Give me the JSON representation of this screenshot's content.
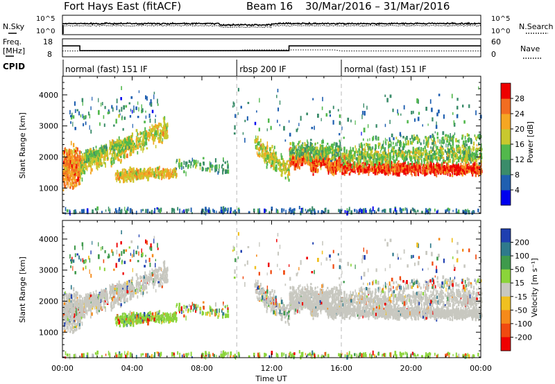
{
  "chart_data": {
    "type": "heatmap",
    "station": "Fort Hays East (fitACF)",
    "beam": "Beam 16",
    "date_range": "30/Mar/2016 – 31/Mar/2016",
    "xlabel": "Time UT",
    "x_ticks": [
      "00:00",
      "04:00",
      "08:00",
      "12:00",
      "16:00",
      "20:00",
      "00:00"
    ],
    "xlim_hours": [
      0,
      24
    ],
    "noise_panel": {
      "left_label": "N.Sky",
      "right_label": "N.Search",
      "left_ticks": [
        "10^5",
        "10^0"
      ],
      "right_ticks": [
        "10^5",
        "10^0"
      ]
    },
    "freq_panel": {
      "left_label_line1": "Freq.",
      "left_label_line2": "[MHz]",
      "right_label": "Nave",
      "left_ticks": [
        "18",
        "8"
      ],
      "right_ticks": [
        "60",
        "0"
      ],
      "frequency_steps": [
        {
          "start_h": 0,
          "end_h": 1.0,
          "mhz": 14.5
        },
        {
          "start_h": 1.0,
          "end_h": 13.0,
          "mhz": 10.8
        },
        {
          "start_h": 13.0,
          "end_h": 24,
          "mhz": 14.5
        }
      ]
    },
    "cpid": {
      "label": "CPID",
      "segments": [
        {
          "start_h": 0,
          "end_h": 10.0,
          "name": "normal (fast) 151 IF"
        },
        {
          "start_h": 10.0,
          "end_h": 16.0,
          "name": "rbsp 200 IF"
        },
        {
          "start_h": 16.0,
          "end_h": 24,
          "name": "normal (fast) 151 IF"
        }
      ]
    },
    "range_panels": {
      "ylabel": "Slant Range [km]",
      "y_ticks": [
        1000,
        2000,
        3000,
        4000
      ],
      "ylim_km": [
        180,
        4600
      ]
    },
    "power": {
      "colorbar_label": "Power [dB]",
      "colorbar_ticks": [
        "4",
        "8",
        "12",
        "16",
        "20",
        "24",
        "28"
      ],
      "colors": [
        "#0000ee",
        "#1f5fb0",
        "#3a8c6a",
        "#52b84c",
        "#c8c82e",
        "#f5a623",
        "#f26d21",
        "#ee0000"
      ]
    },
    "velocity": {
      "colorbar_label": "Velocity [m s⁻¹]",
      "colorbar_ticks": [
        "200",
        "100",
        "50",
        "15",
        "-15",
        "-50",
        "-100",
        "-200"
      ],
      "colors": [
        "#1f3fb0",
        "#2f7a8c",
        "#3f9a4c",
        "#8bd43a",
        "#c8c8c0",
        "#f0c020",
        "#f58a1a",
        "#f04a10",
        "#ee0000"
      ]
    }
  }
}
